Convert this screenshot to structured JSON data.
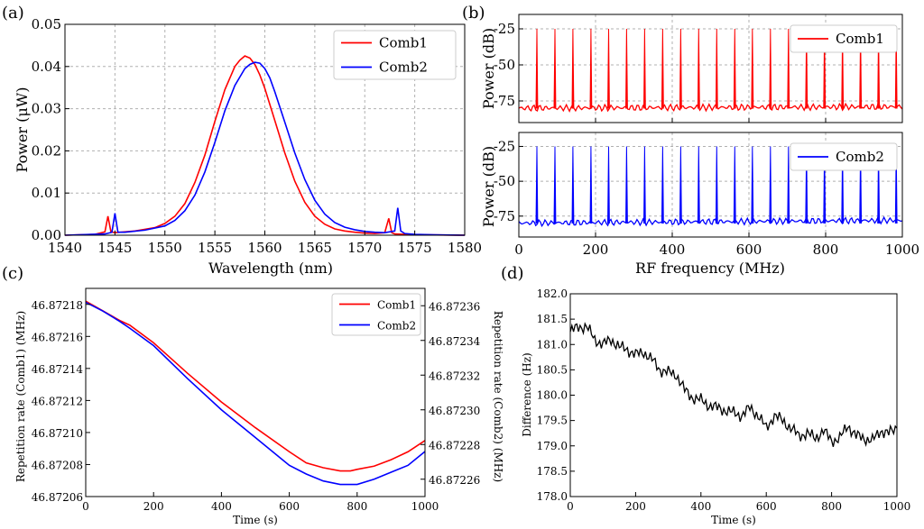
{
  "figure": {
    "panel_labels": [
      "(a)",
      "(b)",
      "(c)",
      "(d)"
    ]
  },
  "chart_data": [
    {
      "id": "a",
      "type": "line",
      "xlabel": "Wavelength (nm)",
      "ylabel": "Power (μW)",
      "xlim": [
        1540,
        1580
      ],
      "ylim": [
        0,
        0.05
      ],
      "xticks": [
        "1540",
        "1545",
        "1550",
        "1555",
        "1560",
        "1565",
        "1570",
        "1575",
        "1580"
      ],
      "yticks": [
        "0.00",
        "0.01",
        "0.02",
        "0.03",
        "0.04",
        "0.05"
      ],
      "grid": true,
      "legend_position": "top-right",
      "series": [
        {
          "name": "Comb1",
          "color": "#ff0000",
          "x": [
            1540,
            1543,
            1544,
            1544.3,
            1544.6,
            1545,
            1547,
            1549,
            1550,
            1551,
            1552,
            1553,
            1554,
            1555,
            1556,
            1557,
            1557.5,
            1558,
            1558.5,
            1559,
            1559.5,
            1560,
            1561,
            1562,
            1563,
            1564,
            1565,
            1566,
            1567,
            1568,
            1569,
            1570,
            1571,
            1572,
            1572.4,
            1572.7,
            1573,
            1574,
            1576,
            1580
          ],
          "y": [
            0,
            0.0002,
            0.0008,
            0.0045,
            0.0008,
            0.0006,
            0.001,
            0.0018,
            0.0028,
            0.0045,
            0.0075,
            0.0125,
            0.019,
            0.027,
            0.0345,
            0.04,
            0.0415,
            0.0425,
            0.042,
            0.0405,
            0.038,
            0.0348,
            0.0272,
            0.0195,
            0.0128,
            0.0078,
            0.0045,
            0.0026,
            0.0015,
            0.001,
            0.0007,
            0.0005,
            0.0004,
            0.0006,
            0.004,
            0.0006,
            0.0003,
            0.0002,
            0.0001,
            0
          ]
        },
        {
          "name": "Comb2",
          "color": "#0000ff",
          "x": [
            1540,
            1544,
            1544.7,
            1545,
            1545.3,
            1546,
            1548,
            1550,
            1551,
            1552,
            1553,
            1554,
            1555,
            1556,
            1557,
            1558,
            1558.5,
            1559,
            1559.5,
            1560,
            1560.5,
            1561,
            1562,
            1563,
            1564,
            1565,
            1566,
            1567,
            1568,
            1569,
            1570,
            1571,
            1572,
            1573,
            1573.3,
            1573.6,
            1574,
            1575,
            1577,
            1580
          ],
          "y": [
            0,
            0.0003,
            0.0007,
            0.0052,
            0.0007,
            0.0007,
            0.0012,
            0.0022,
            0.0035,
            0.0058,
            0.0095,
            0.015,
            0.022,
            0.0295,
            0.0355,
            0.0395,
            0.0405,
            0.041,
            0.0408,
            0.0395,
            0.0373,
            0.034,
            0.0268,
            0.0195,
            0.0132,
            0.0083,
            0.005,
            0.003,
            0.0019,
            0.0013,
            0.0009,
            0.0007,
            0.0006,
            0.001,
            0.0065,
            0.001,
            0.0004,
            0.0002,
            0.0001,
            0
          ]
        }
      ]
    },
    {
      "id": "b",
      "type": "line",
      "subplots": [
        {
          "name": "Comb1",
          "color": "#ff0000",
          "ylabel": "Power (dB)",
          "ylim": [
            -90,
            -15
          ],
          "yticks": [
            "-25",
            "-50",
            "-75"
          ],
          "peak_frequencies": [
            47,
            94,
            141,
            188,
            234,
            281,
            328,
            375,
            422,
            469,
            516,
            563,
            609,
            656,
            703,
            750,
            797,
            844,
            891,
            938,
            984
          ],
          "peak_level": -25,
          "noise_floor": -80
        },
        {
          "name": "Comb2",
          "color": "#0000ff",
          "ylabel": "Power (dB)",
          "ylim": [
            -90,
            -15
          ],
          "yticks": [
            "-25",
            "-50",
            "-75"
          ],
          "peak_frequencies": [
            47,
            94,
            141,
            188,
            234,
            281,
            328,
            375,
            422,
            469,
            516,
            563,
            609,
            656,
            703,
            750,
            797,
            844,
            891,
            938,
            984
          ],
          "peak_level": -25,
          "noise_floor": -80
        }
      ],
      "xlabel": "RF frequency (MHz)",
      "xlim": [
        0,
        1000
      ],
      "xticks": [
        "0",
        "200",
        "400",
        "600",
        "800",
        "1000"
      ],
      "grid": true,
      "legend_position": "top-right"
    },
    {
      "id": "c",
      "type": "line",
      "xlabel": "Time (s)",
      "ylabel_left": "Repetition rate (Comb1) (MHz)",
      "ylabel_right": "Repetition rate (Comb2) (MHz)",
      "xlim": [
        0,
        1000
      ],
      "ylim_left": [
        46.87206,
        46.87219
      ],
      "ylim_right": [
        46.87225,
        46.87237
      ],
      "xticks": [
        "0",
        "200",
        "400",
        "600",
        "800",
        "1000"
      ],
      "yticks_left": [
        "46.87206",
        "46.87208",
        "46.87210",
        "46.87212",
        "46.87214",
        "46.87216",
        "46.87218"
      ],
      "yticks_right": [
        "46.87226",
        "46.87228",
        "46.87230",
        "46.87232",
        "46.87234",
        "46.87236"
      ],
      "legend_position": "top-right",
      "series": [
        {
          "name": "Comb1",
          "color": "#ff0000",
          "axis": "left",
          "x": [
            0,
            50,
            100,
            130,
            200,
            300,
            400,
            500,
            600,
            650,
            700,
            750,
            780,
            800,
            850,
            900,
            950,
            1000
          ],
          "y": [
            46.872182,
            46.872176,
            46.87217,
            46.872167,
            46.872156,
            46.872137,
            46.872119,
            46.872103,
            46.872088,
            46.872081,
            46.872078,
            46.872076,
            46.872076,
            46.872077,
            46.872079,
            46.872083,
            46.872088,
            46.872095
          ]
        },
        {
          "name": "Comb2",
          "color": "#0000ff",
          "axis": "right",
          "x": [
            0,
            50,
            100,
            130,
            200,
            300,
            400,
            500,
            600,
            650,
            700,
            750,
            770,
            800,
            850,
            900,
            950,
            1000
          ],
          "y": [
            46.872362,
            46.872357,
            46.872351,
            46.872347,
            46.872337,
            46.872318,
            46.8723,
            46.872284,
            46.872268,
            46.872263,
            46.872259,
            46.872257,
            46.872257,
            46.872257,
            46.87226,
            46.872264,
            46.872268,
            46.872276
          ]
        }
      ]
    },
    {
      "id": "d",
      "type": "line",
      "xlabel": "Time (s)",
      "ylabel": "Difference (Hz)",
      "xlim": [
        0,
        1000
      ],
      "ylim": [
        178,
        182
      ],
      "xticks": [
        "0",
        "200",
        "400",
        "600",
        "800",
        "1000"
      ],
      "yticks": [
        "178.0",
        "178.5",
        "179.0",
        "179.5",
        "180.0",
        "180.5",
        "181.0",
        "181.5",
        "182.0"
      ],
      "series": [
        {
          "name": "Difference",
          "color": "#000000",
          "x": [
            0,
            25,
            50,
            75,
            100,
            125,
            150,
            175,
            200,
            225,
            250,
            275,
            300,
            325,
            350,
            375,
            400,
            425,
            450,
            475,
            500,
            525,
            550,
            575,
            600,
            625,
            650,
            675,
            700,
            725,
            750,
            775,
            800,
            825,
            850,
            875,
            900,
            925,
            950,
            975,
            1000
          ],
          "y": [
            181.25,
            181.35,
            181.35,
            181.1,
            181.0,
            181.1,
            180.95,
            180.9,
            180.8,
            180.85,
            180.7,
            180.5,
            180.45,
            180.4,
            180.1,
            179.95,
            179.9,
            179.8,
            179.75,
            179.7,
            179.65,
            179.6,
            179.75,
            179.6,
            179.35,
            179.6,
            179.5,
            179.35,
            179.2,
            179.25,
            179.15,
            179.3,
            179.1,
            179.15,
            179.4,
            179.2,
            179.15,
            179.1,
            179.3,
            179.25,
            179.35
          ]
        }
      ]
    }
  ]
}
